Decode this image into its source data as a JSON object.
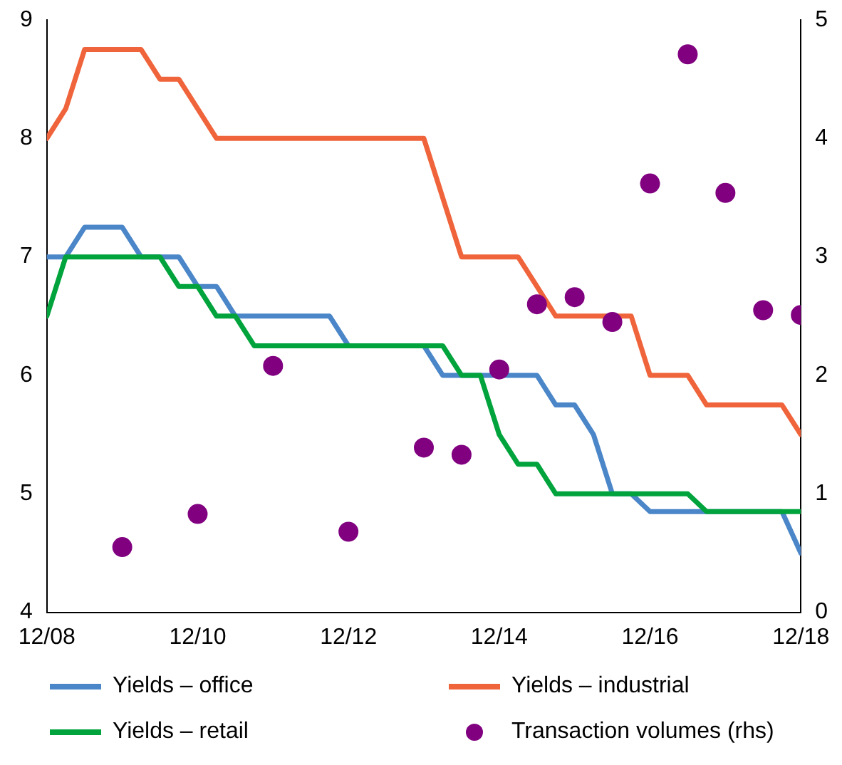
{
  "chart_data": {
    "type": "line",
    "legend": "bottom",
    "grid": false,
    "marker": "none",
    "xlim": [
      "2008-12",
      "2018-12"
    ],
    "xticks": [
      {
        "value": "2008-12",
        "label": "12/08"
      },
      {
        "value": "2010-12",
        "label": "12/10"
      },
      {
        "value": "2012-12",
        "label": "12/12"
      },
      {
        "value": "2014-12",
        "label": "12/14"
      },
      {
        "value": "2016-12",
        "label": "12/16"
      },
      {
        "value": "2018-12",
        "label": "12/18"
      }
    ],
    "ylim": [
      4,
      9
    ],
    "yticks": [
      4,
      5,
      6,
      7,
      8,
      9
    ],
    "y2lim": [
      0,
      5
    ],
    "y2ticks": [
      0,
      1,
      2,
      3,
      4,
      5
    ],
    "series": [
      {
        "name": "Yields – office",
        "color": "#4a86c8",
        "x": [
          "2008-12",
          "2009-03",
          "2009-06",
          "2009-09",
          "2009-12",
          "2010-03",
          "2010-06",
          "2010-09",
          "2010-12",
          "2011-03",
          "2011-06",
          "2011-09",
          "2011-12",
          "2012-03",
          "2012-06",
          "2012-09",
          "2012-12",
          "2013-03",
          "2013-06",
          "2013-09",
          "2013-12",
          "2014-03",
          "2014-06",
          "2014-09",
          "2014-12",
          "2015-03",
          "2015-06",
          "2015-09",
          "2015-12",
          "2016-03",
          "2016-06",
          "2016-09",
          "2016-12",
          "2017-03",
          "2017-06",
          "2017-09",
          "2017-12",
          "2018-03",
          "2018-06",
          "2018-09",
          "2018-12"
        ],
        "values": [
          7,
          7,
          7.25,
          7.25,
          7.25,
          7,
          7,
          7,
          6.75,
          6.75,
          6.5,
          6.5,
          6.5,
          6.5,
          6.5,
          6.5,
          6.25,
          6.25,
          6.25,
          6.25,
          6.25,
          6,
          6,
          6,
          6,
          6,
          6,
          5.75,
          5.75,
          5.5,
          5,
          5,
          4.85,
          4.85,
          4.85,
          4.85,
          4.85,
          4.85,
          4.85,
          4.85,
          4.5
        ]
      },
      {
        "name": "Yields – industrial",
        "color": "#f0643c",
        "x": [
          "2008-12",
          "2009-03",
          "2009-06",
          "2009-09",
          "2009-12",
          "2010-03",
          "2010-06",
          "2010-09",
          "2010-12",
          "2011-03",
          "2011-06",
          "2011-09",
          "2011-12",
          "2012-03",
          "2012-06",
          "2012-09",
          "2012-12",
          "2013-03",
          "2013-06",
          "2013-09",
          "2013-12",
          "2014-03",
          "2014-06",
          "2014-09",
          "2014-12",
          "2015-03",
          "2015-06",
          "2015-09",
          "2015-12",
          "2016-03",
          "2016-06",
          "2016-09",
          "2016-12",
          "2017-03",
          "2017-06",
          "2017-09",
          "2017-12",
          "2018-03",
          "2018-06",
          "2018-09",
          "2018-12"
        ],
        "values": [
          8,
          8.25,
          8.75,
          8.75,
          8.75,
          8.75,
          8.5,
          8.5,
          8.25,
          8,
          8,
          8,
          8,
          8,
          8,
          8,
          8,
          8,
          8,
          8,
          8,
          7.5,
          7,
          7,
          7,
          7,
          6.75,
          6.5,
          6.5,
          6.5,
          6.5,
          6.5,
          6,
          6,
          6,
          5.75,
          5.75,
          5.75,
          5.75,
          5.75,
          5.5
        ]
      },
      {
        "name": "Yields – retail",
        "color": "#00a33c",
        "x": [
          "2008-12",
          "2009-03",
          "2009-06",
          "2009-09",
          "2009-12",
          "2010-03",
          "2010-06",
          "2010-09",
          "2010-12",
          "2011-03",
          "2011-06",
          "2011-09",
          "2011-12",
          "2012-03",
          "2012-06",
          "2012-09",
          "2012-12",
          "2013-03",
          "2013-06",
          "2013-09",
          "2013-12",
          "2014-03",
          "2014-06",
          "2014-09",
          "2014-12",
          "2015-03",
          "2015-06",
          "2015-09",
          "2015-12",
          "2016-03",
          "2016-06",
          "2016-09",
          "2016-12",
          "2017-03",
          "2017-06",
          "2017-09",
          "2017-12",
          "2018-03",
          "2018-06",
          "2018-09",
          "2018-12"
        ],
        "values": [
          6.5,
          7,
          7,
          7,
          7,
          7,
          7,
          6.75,
          6.75,
          6.5,
          6.5,
          6.25,
          6.25,
          6.25,
          6.25,
          6.25,
          6.25,
          6.25,
          6.25,
          6.25,
          6.25,
          6.25,
          6,
          6,
          5.5,
          5.25,
          5.25,
          5,
          5,
          5,
          5,
          5,
          5,
          5,
          5,
          4.85,
          4.85,
          4.85,
          4.85,
          4.85,
          4.85
        ]
      },
      {
        "name": "Transaction volumes (rhs)",
        "color": "#800080",
        "type": "scatter",
        "marker": "circle",
        "axis": "y2",
        "x": [
          "2009-12",
          "2010-12",
          "2011-12",
          "2012-12",
          "2013-12",
          "2014-06",
          "2014-12",
          "2015-06",
          "2015-12",
          "2016-06",
          "2016-12",
          "2017-06",
          "2017-12",
          "2018-06",
          "2018-12"
        ],
        "values": [
          0.55,
          0.83,
          2.08,
          0.68,
          1.39,
          1.33,
          2.05,
          2.6,
          2.66,
          2.45,
          3.62,
          4.71,
          3.54,
          2.55,
          2.51
        ]
      }
    ]
  }
}
